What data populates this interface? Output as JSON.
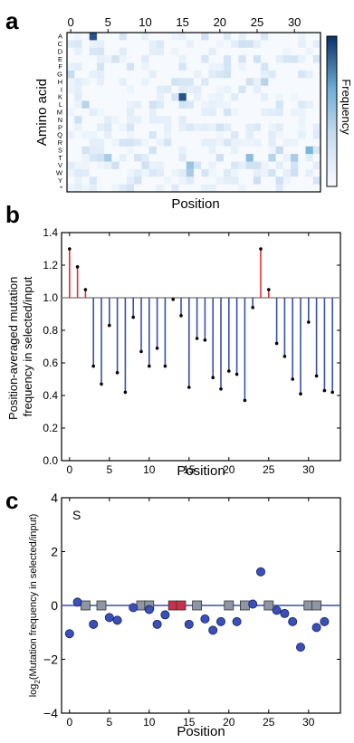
{
  "panels": {
    "a": {
      "letter": "a"
    },
    "b": {
      "letter": "b"
    },
    "c": {
      "letter": "c"
    }
  },
  "colors": {
    "red": "#e03030",
    "blue": "#3c4fa8",
    "dot_blue": "#3a4fb8",
    "baseline": "#8a8a8a",
    "square_gray": "#8f96a3",
    "square_red": "#c8314a",
    "heat_low": "#f4f9fe",
    "heat_high": "#08306b"
  },
  "chart_data": [
    {
      "type": "heatmap",
      "xlabel": "Position",
      "ylabel": "Amino acid",
      "colorbar_label": "Frequency",
      "x_ticks": [
        "0",
        "5",
        "10",
        "15",
        "20",
        "25",
        "30"
      ],
      "y_labels": [
        "A",
        "C",
        "D",
        "E",
        "F",
        "G",
        "H",
        "I",
        "K",
        "L",
        "M",
        "N",
        "P",
        "Q",
        "R",
        "S",
        "T",
        "V",
        "W",
        "Y",
        "*"
      ],
      "x_range": [
        0,
        33
      ],
      "notable_cells": [
        {
          "row": "A",
          "col": 3,
          "value": 0.9
        },
        {
          "row": "K",
          "col": 15,
          "value": 0.9
        },
        {
          "row": "V",
          "col": 16,
          "value": 0.5
        },
        {
          "row": "T",
          "col": 24,
          "value": 0.55
        },
        {
          "row": "S",
          "col": 32,
          "value": 0.6
        },
        {
          "row": "T",
          "col": 30,
          "value": 0.45
        },
        {
          "row": "T",
          "col": 5,
          "value": 0.45
        },
        {
          "row": "W",
          "col": 16,
          "value": 0.45
        },
        {
          "row": "G",
          "col": 0,
          "value": 0.35
        },
        {
          "row": "L",
          "col": 2,
          "value": 0.4
        },
        {
          "row": "T",
          "col": 27,
          "value": 0.4
        },
        {
          "row": "H",
          "col": 26,
          "value": 0.4
        },
        {
          "row": "S",
          "col": 28,
          "value": 0.35
        }
      ]
    },
    {
      "type": "bar",
      "xlabel": "Position",
      "ylabel": "Position-averaged mutation\nfrequency in selected/input",
      "ylim": [
        0.0,
        1.4
      ],
      "xlim": [
        -1,
        34
      ],
      "x_ticks": [
        0,
        5,
        10,
        15,
        20,
        25,
        30
      ],
      "y_ticks": [
        "0.0",
        "0.2",
        "0.4",
        "0.6",
        "0.8",
        "1.0",
        "1.2",
        "1.4"
      ],
      "baseline": 1.0,
      "x": [
        0,
        1,
        2,
        3,
        4,
        5,
        6,
        7,
        8,
        9,
        10,
        11,
        12,
        13,
        14,
        15,
        16,
        17,
        18,
        19,
        20,
        21,
        22,
        23,
        24,
        25,
        26,
        27,
        28,
        29,
        30,
        31,
        32,
        33
      ],
      "values": [
        1.3,
        1.19,
        1.05,
        0.58,
        0.47,
        0.83,
        0.54,
        0.42,
        0.88,
        0.67,
        0.58,
        0.69,
        0.58,
        0.99,
        0.89,
        0.45,
        0.75,
        0.74,
        0.51,
        0.44,
        0.55,
        0.53,
        0.37,
        0.94,
        1.3,
        1.05,
        0.72,
        0.64,
        0.5,
        0.41,
        0.85,
        0.52,
        0.43,
        0.42
      ]
    },
    {
      "type": "scatter",
      "xlabel": "Position",
      "ylabel": "log2(Mutation frequency in selected/input)",
      "annotation": "S",
      "ylim": [
        -4,
        4
      ],
      "xlim": [
        -1,
        34
      ],
      "x_ticks": [
        0,
        5,
        10,
        15,
        20,
        25,
        30
      ],
      "y_ticks": [
        "−4",
        "−2",
        "0",
        "2",
        "4"
      ],
      "points": [
        {
          "x": 0,
          "y": -1.05
        },
        {
          "x": 1,
          "y": 0.12
        },
        {
          "x": 3,
          "y": -0.7
        },
        {
          "x": 5,
          "y": -0.45
        },
        {
          "x": 6,
          "y": -0.55
        },
        {
          "x": 8,
          "y": -0.08
        },
        {
          "x": 10,
          "y": -0.15
        },
        {
          "x": 11,
          "y": -0.7
        },
        {
          "x": 12,
          "y": -0.35
        },
        {
          "x": 15,
          "y": -0.7
        },
        {
          "x": 17,
          "y": -0.5
        },
        {
          "x": 18,
          "y": -0.92
        },
        {
          "x": 19,
          "y": -0.6
        },
        {
          "x": 21,
          "y": -0.6
        },
        {
          "x": 23,
          "y": 0.05
        },
        {
          "x": 24,
          "y": 1.25
        },
        {
          "x": 26,
          "y": -0.18
        },
        {
          "x": 27,
          "y": -0.3
        },
        {
          "x": 28,
          "y": -0.6
        },
        {
          "x": 29,
          "y": -1.55
        },
        {
          "x": 31,
          "y": -0.82
        },
        {
          "x": 32,
          "y": -0.6
        }
      ],
      "squares": [
        {
          "x": 2,
          "color": "gray"
        },
        {
          "x": 4,
          "color": "gray"
        },
        {
          "x": 9,
          "color": "gray"
        },
        {
          "x": 10,
          "color": "gray"
        },
        {
          "x": 13,
          "color": "red"
        },
        {
          "x": 14,
          "color": "red"
        },
        {
          "x": 16,
          "color": "gray"
        },
        {
          "x": 20,
          "color": "gray"
        },
        {
          "x": 22,
          "color": "gray"
        },
        {
          "x": 25,
          "color": "gray"
        },
        {
          "x": 30,
          "color": "gray"
        },
        {
          "x": 31,
          "color": "gray"
        }
      ]
    }
  ]
}
